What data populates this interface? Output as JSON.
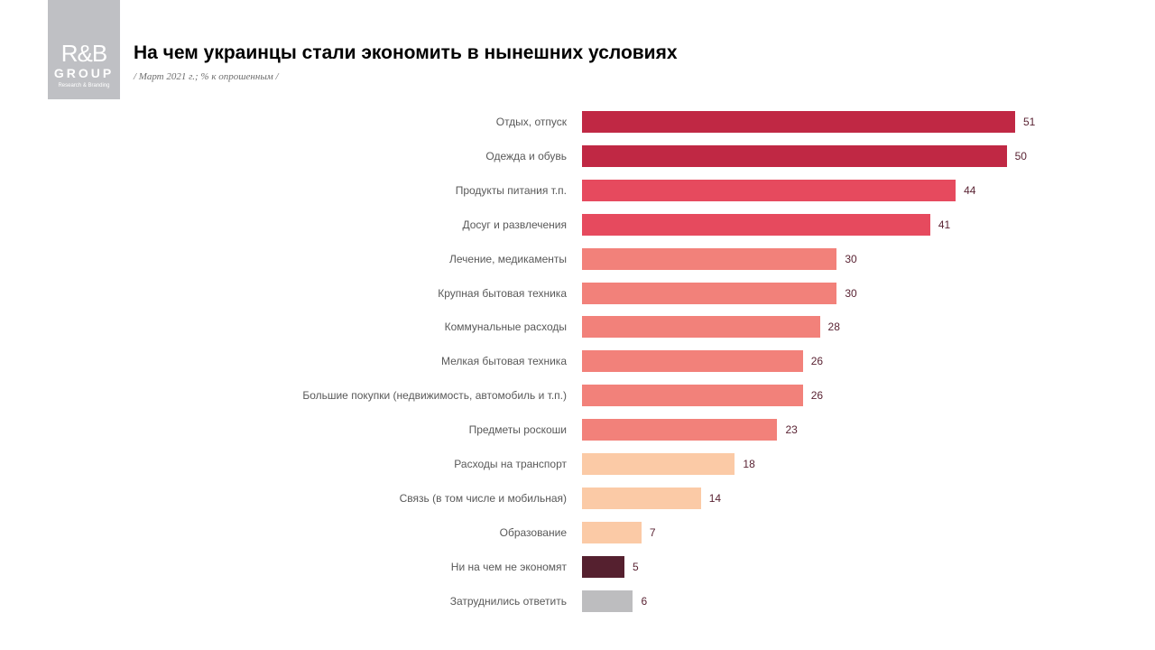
{
  "logo": {
    "mark": "R&B",
    "group": "GROUP",
    "tagline": "Research & Branding"
  },
  "chart_data": {
    "type": "bar",
    "orientation": "horizontal",
    "title": "На чем украинцы стали экономить в нынешних условиях",
    "subtitle": "/ Март 2021 г.; % к опрошенным  /",
    "categories": [
      "Отдых, отпуск",
      "Одежда и обувь",
      "Продукты питания т.п.",
      "Досуг и развлечения",
      "Лечение, медикаменты",
      "Крупная бытовая техника",
      "Коммунальные расходы",
      "Мелкая бытовая техника",
      "Большие покупки (недвижимость, автомобиль и т.п.)",
      "Предметы роскоши",
      "Расходы на транспорт",
      "Связь (в том числе и мобильная)",
      "Образование",
      "Ни на чем не экономят",
      "Затруднились ответить"
    ],
    "values": [
      51,
      50,
      44,
      41,
      30,
      30,
      28,
      26,
      26,
      23,
      18,
      14,
      7,
      5,
      6
    ],
    "colors": [
      "#c02844",
      "#c02844",
      "#e64a5e",
      "#e64a5e",
      "#f2817a",
      "#f2817a",
      "#f2817a",
      "#f2817a",
      "#f2817a",
      "#f2817a",
      "#fbcaa6",
      "#fbcaa6",
      "#fbcaa6",
      "#55202f",
      "#bdbdbf"
    ],
    "xlim": [
      0,
      51
    ],
    "grid": false,
    "legend": "none",
    "data_labels": true
  }
}
